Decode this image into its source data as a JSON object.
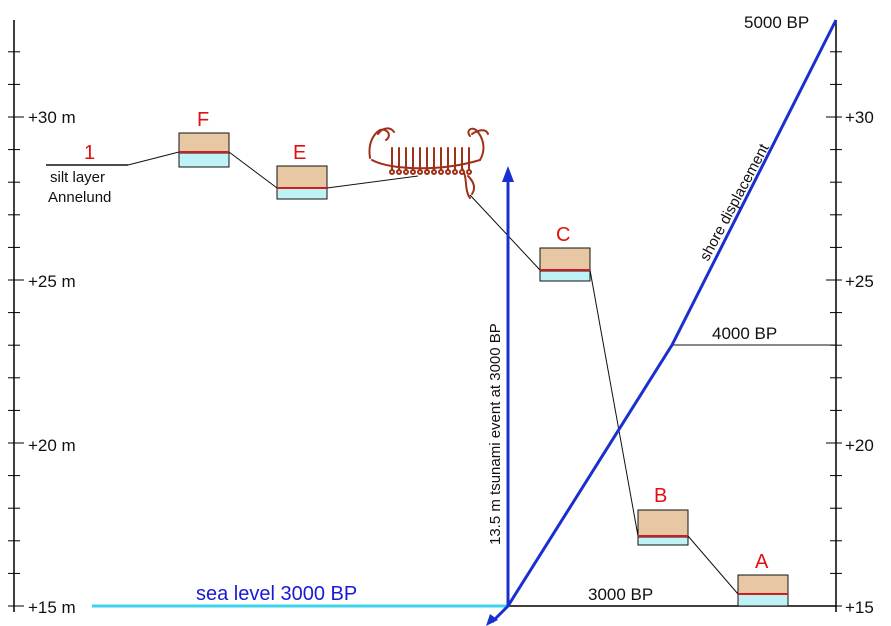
{
  "axis_left": {
    "labels": [
      "+30 m",
      "+25 m",
      "+20 m",
      "+15 m"
    ]
  },
  "axis_right": {
    "labels": [
      "+30",
      "+25",
      "+20",
      "+15"
    ]
  },
  "sites": [
    {
      "id": "F",
      "label": "F"
    },
    {
      "id": "E",
      "label": "E"
    },
    {
      "id": "C",
      "label": "C"
    },
    {
      "id": "B",
      "label": "B"
    },
    {
      "id": "A",
      "label": "A"
    }
  ],
  "site_1": {
    "number": "1",
    "line1": "silt layer",
    "line2": "Annelund"
  },
  "labels": {
    "bp5000": "5000 BP",
    "bp4000": "4000 BP",
    "bp3000": "3000 BP",
    "shore": "shore displacement",
    "tsunami": "13.5 m tsunami event at 3000 BP",
    "sea_level": "sea level 3000 BP"
  },
  "colors": {
    "sediment": "#e8c8a4",
    "water": "#bff2f6",
    "red_layer": "#d21c1c",
    "blue_line": "#1a2fd0",
    "cyan_line": "#3fd2ec",
    "label_red": "#e01010",
    "carving": "#a03018"
  },
  "icons": {
    "rock_carving": "ship-carving-icon"
  }
}
